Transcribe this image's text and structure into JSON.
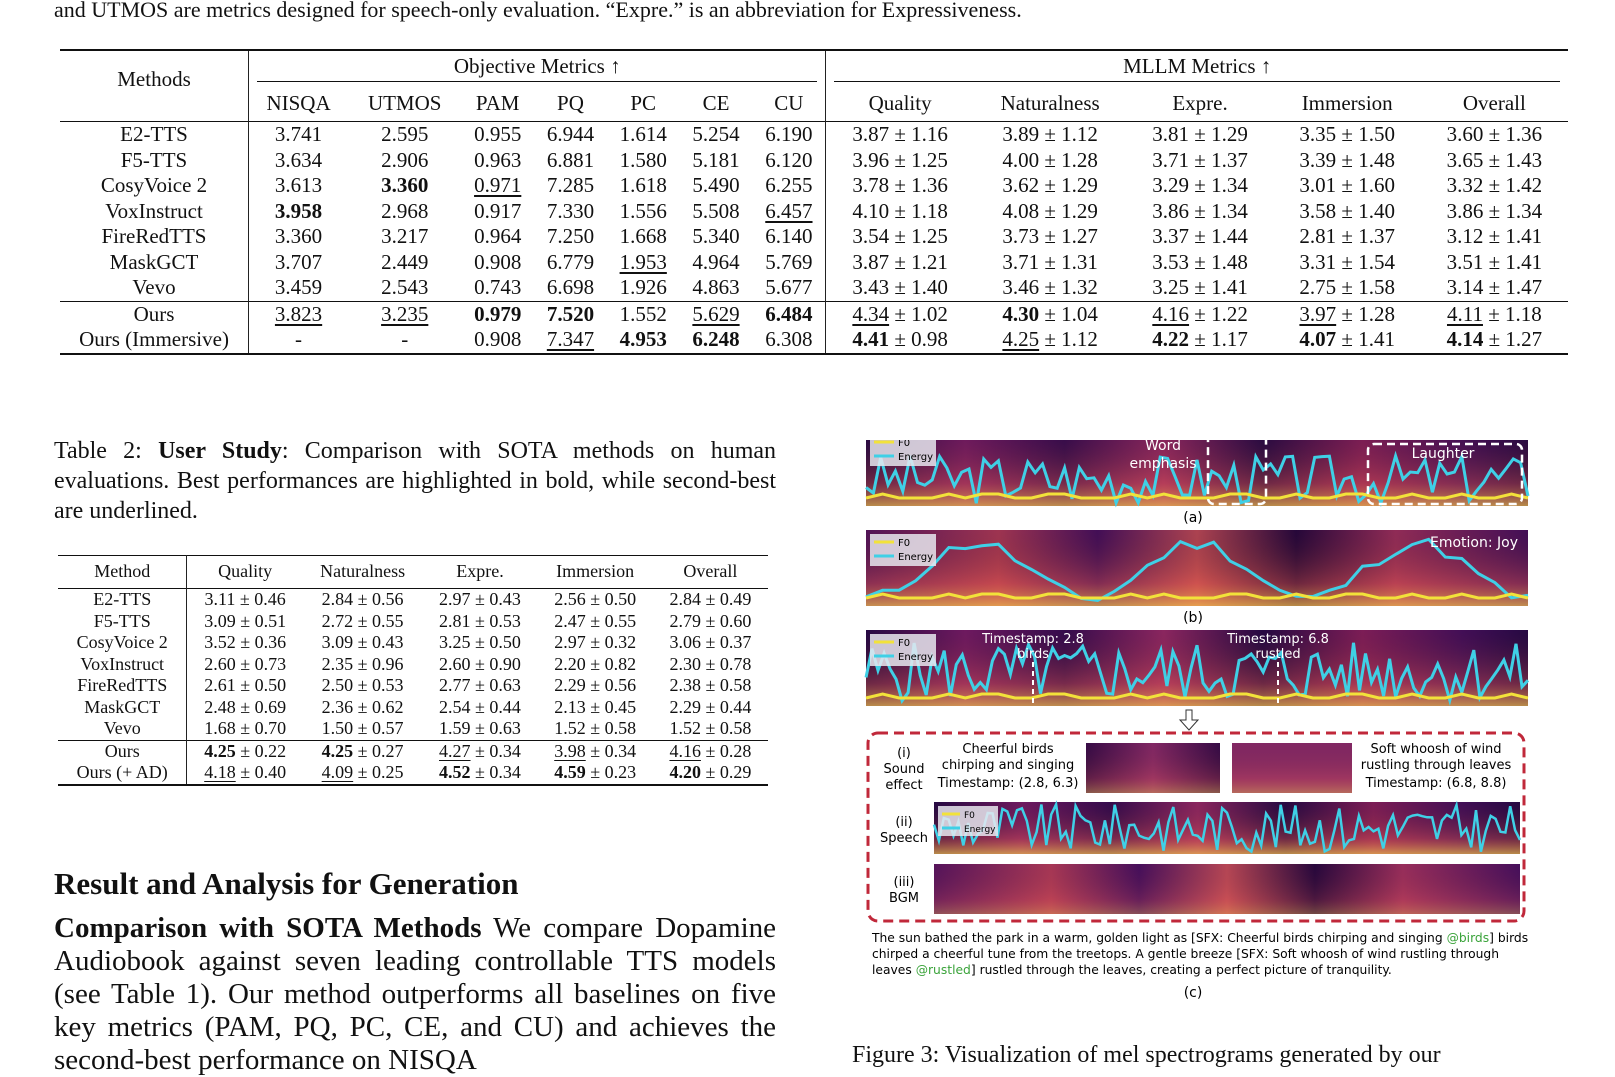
{
  "top_text": "and UTMOS are metrics designed for speech-only evaluation. “Expre.” is an abbreviation for Expressiveness.",
  "table1": {
    "methods_header": "Methods",
    "group_objective": "Objective Metrics ↑",
    "group_mllm": "MLLM Metrics ↑",
    "columns": [
      "NISQA",
      "UTMOS",
      "PAM",
      "PQ",
      "PC",
      "CE",
      "CU",
      "Quality",
      "Naturalness",
      "Expre.",
      "Immersion",
      "Overall"
    ],
    "rows": [
      {
        "name": "E2-TTS",
        "c": [
          "3.741",
          "2.595",
          "0.955",
          "6.944",
          "1.614",
          "5.254",
          "6.190",
          "3.87",
          "1.16",
          "3.89",
          "1.12",
          "3.81",
          "1.29",
          "3.35",
          "1.50",
          "3.60",
          "1.36"
        ]
      },
      {
        "name": "F5-TTS",
        "c": [
          "3.634",
          "2.906",
          "0.963",
          "6.881",
          "1.580",
          "5.181",
          "6.120",
          "3.96",
          "1.25",
          "4.00",
          "1.28",
          "3.71",
          "1.37",
          "3.39",
          "1.48",
          "3.65",
          "1.43"
        ]
      },
      {
        "name": "CosyVoice 2",
        "c": [
          "3.613",
          "3.360",
          "0.971",
          "7.285",
          "1.618",
          "5.490",
          "6.255",
          "3.78",
          "1.36",
          "3.62",
          "1.29",
          "3.29",
          "1.34",
          "3.01",
          "1.60",
          "3.32",
          "1.42"
        ]
      },
      {
        "name": "VoxInstruct",
        "c": [
          "3.958",
          "2.968",
          "0.917",
          "7.330",
          "1.556",
          "5.508",
          "6.457",
          "4.10",
          "1.18",
          "4.08",
          "1.29",
          "3.86",
          "1.34",
          "3.58",
          "1.40",
          "3.86",
          "1.34"
        ]
      },
      {
        "name": "FireRedTTS",
        "c": [
          "3.360",
          "3.217",
          "0.964",
          "7.250",
          "1.668",
          "5.340",
          "6.140",
          "3.54",
          "1.25",
          "3.73",
          "1.27",
          "3.37",
          "1.44",
          "2.81",
          "1.37",
          "3.12",
          "1.41"
        ]
      },
      {
        "name": "MaskGCT",
        "c": [
          "3.707",
          "2.449",
          "0.908",
          "6.779",
          "1.953",
          "4.964",
          "5.769",
          "3.87",
          "1.21",
          "3.71",
          "1.31",
          "3.53",
          "1.48",
          "3.31",
          "1.54",
          "3.51",
          "1.41"
        ]
      },
      {
        "name": "Vevo",
        "c": [
          "3.459",
          "2.543",
          "0.743",
          "6.698",
          "1.926",
          "4.863",
          "5.677",
          "3.43",
          "1.40",
          "3.46",
          "1.32",
          "3.25",
          "1.41",
          "2.75",
          "1.58",
          "3.14",
          "1.47"
        ]
      }
    ],
    "ours_rows": [
      {
        "name": "Ours",
        "c": [
          "3.823",
          "3.235",
          "0.979",
          "7.520",
          "1.552",
          "5.629",
          "6.484",
          "4.34",
          "1.02",
          "4.30",
          "1.04",
          "4.16",
          "1.22",
          "3.97",
          "1.28",
          "4.11",
          "1.18"
        ]
      },
      {
        "name": "Ours (Immersive)",
        "c": [
          "-",
          "-",
          "0.908",
          "7.347",
          "4.953",
          "6.248",
          "6.308",
          "4.41",
          "0.98",
          "4.25",
          "1.12",
          "4.22",
          "1.17",
          "4.07",
          "1.41",
          "4.14",
          "1.27"
        ]
      }
    ],
    "pm": "±"
  },
  "caption2": {
    "label": "Table 2: ",
    "bold": "User Study",
    "text": ": Comparison with SOTA methods on human evaluations. Best performances are highlighted in bold, while second-best are underlined."
  },
  "table2": {
    "columns": [
      "Method",
      "Quality",
      "Naturalness",
      "Expre.",
      "Immersion",
      "Overall"
    ],
    "rows": [
      {
        "name": "E2-TTS",
        "c": [
          "3.11",
          "0.46",
          "2.84",
          "0.56",
          "2.97",
          "0.43",
          "2.56",
          "0.50",
          "2.84",
          "0.49"
        ]
      },
      {
        "name": "F5-TTS",
        "c": [
          "3.09",
          "0.51",
          "2.72",
          "0.55",
          "2.81",
          "0.53",
          "2.47",
          "0.55",
          "2.79",
          "0.60"
        ]
      },
      {
        "name": "CosyVoice 2",
        "c": [
          "3.52",
          "0.36",
          "3.09",
          "0.43",
          "3.25",
          "0.50",
          "2.97",
          "0.32",
          "3.06",
          "0.37"
        ]
      },
      {
        "name": "VoxInstruct",
        "c": [
          "2.60",
          "0.73",
          "2.35",
          "0.96",
          "2.60",
          "0.90",
          "2.20",
          "0.82",
          "2.30",
          "0.78"
        ]
      },
      {
        "name": "FireRedTTS",
        "c": [
          "2.61",
          "0.50",
          "2.50",
          "0.53",
          "2.77",
          "0.63",
          "2.29",
          "0.56",
          "2.38",
          "0.58"
        ]
      },
      {
        "name": "MaskGCT",
        "c": [
          "2.48",
          "0.69",
          "2.36",
          "0.62",
          "2.54",
          "0.44",
          "2.13",
          "0.45",
          "2.29",
          "0.44"
        ]
      },
      {
        "name": "Vevo",
        "c": [
          "1.68",
          "0.70",
          "1.50",
          "0.57",
          "1.59",
          "0.63",
          "1.52",
          "0.58",
          "1.52",
          "0.58"
        ]
      }
    ],
    "ours_rows": [
      {
        "name": "Ours",
        "c": [
          "4.25",
          "0.22",
          "4.25",
          "0.27",
          "4.27",
          "0.34",
          "3.98",
          "0.34",
          "4.16",
          "0.28"
        ]
      },
      {
        "name": "Ours (+ AD)",
        "c": [
          "4.18",
          "0.40",
          "4.09",
          "0.25",
          "4.52",
          "0.34",
          "4.59",
          "0.23",
          "4.20",
          "0.29"
        ]
      }
    ]
  },
  "section_title": "Result and Analysis for Generation",
  "paragraph": {
    "lead": "Comparison with SOTA Methods",
    "text": " We compare Dopamine Audiobook against seven leading controllable TTS models (see Table 1). Our method outperforms all baselines on five key metrics (PAM, PQ, PC, CE, and CU) and achieves the second-best performance on NISQA"
  },
  "figure": {
    "legend_f0": "F0",
    "legend_energy": "Energy",
    "a_word": "Word",
    "a_emphasis": "emphasis",
    "a_laughter": "Laughter",
    "a_label": "(a)",
    "b_emotion": "Emotion: Joy",
    "b_label": "(b)",
    "c_ts1": "Timestamp: 2.8",
    "c_ts1b": "birds",
    "c_ts2": "Timestamp: 6.8",
    "c_ts2b": "rustled",
    "i_label": "(i)",
    "i_sound": "Sound",
    "i_effect": "effect",
    "i_desc1": "Cheerful birds",
    "i_desc2": "chirping and singing",
    "i_desc3": "Timestamp: (2.8, 6.3)",
    "i_desc4": "Soft whoosh of wind",
    "i_desc5": "rustling through leaves",
    "i_desc6": "Timestamp: (6.8, 8.8)",
    "ii_label": "(ii)",
    "ii_speech": "Speech",
    "iii_label": "(iii)",
    "iii_bgm": "BGM",
    "story1": "The sun bathed the park in a warm, golden light as [SFX: Cheerful birds chirping and singing",
    "story1_tag": "@birds",
    "story1_end": "] birds",
    "story2": "chirped a cheerful tune from the treetops. A gentle breeze [SFX: Soft whoosh of wind rustling through",
    "story3_pre": "leaves",
    "story3_tag": "@rustled",
    "story3_end": "] rustled through the leaves, creating a perfect picture of tranquility.",
    "c_label": "(c)",
    "colors": {
      "energy": "#3fd0e6",
      "f0": "#f2e23a",
      "spec_dark": "#1a0633",
      "spec_mid": "#8a1f6b",
      "spec_hot": "#f08a3a",
      "box": "#c0283a",
      "tag": "#3aa33a"
    }
  },
  "figure_caption": "Figure 3: Visualization of mel spectrograms generated by our"
}
